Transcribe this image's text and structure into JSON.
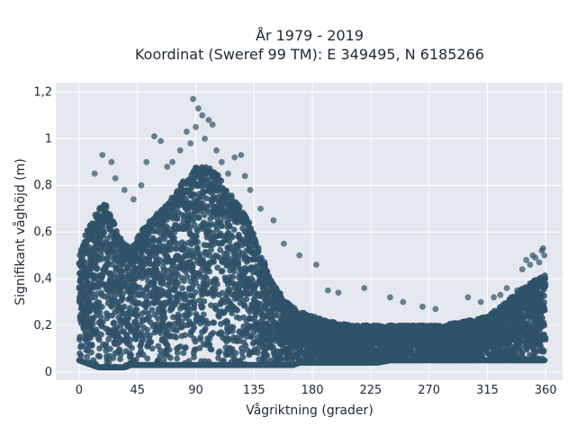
{
  "chart_data": {
    "type": "scatter",
    "title_line1": "År 1979 - 2019",
    "title_line2": "Koordinat (Sweref 99 TM): E 349495, N 6185266",
    "xlabel": "Vågriktning (grader)",
    "ylabel": "Signifikant våghöjd (m)",
    "xlim": [
      -18,
      373
    ],
    "ylim": [
      -0.035,
      1.24
    ],
    "x_ticks": [
      0,
      45,
      90,
      135,
      180,
      225,
      270,
      315,
      360
    ],
    "x_tick_labels": [
      "0",
      "45",
      "90",
      "135",
      "180",
      "225",
      "270",
      "315",
      "360"
    ],
    "y_ticks": [
      0,
      0.2,
      0.4,
      0.6,
      0.8,
      1,
      1.2
    ],
    "y_tick_labels": [
      "0",
      "0,2",
      "0,4",
      "0,6",
      "0,8",
      "1",
      "1,2"
    ],
    "grid": true,
    "marker_color": "#2f5269",
    "envelope": {
      "x": [
        0,
        5,
        10,
        15,
        20,
        25,
        30,
        35,
        40,
        45,
        50,
        55,
        60,
        65,
        70,
        75,
        80,
        85,
        90,
        95,
        100,
        105,
        110,
        115,
        120,
        125,
        130,
        135,
        140,
        145,
        150,
        155,
        160,
        165,
        170,
        175,
        180,
        190,
        200,
        210,
        220,
        230,
        240,
        250,
        260,
        270,
        280,
        290,
        300,
        310,
        320,
        330,
        335,
        340,
        345,
        350,
        355,
        360
      ],
      "y_min": [
        0.05,
        0.04,
        0.03,
        0.02,
        0.02,
        0.02,
        0.02,
        0.02,
        0.03,
        0.03,
        0.03,
        0.03,
        0.03,
        0.03,
        0.03,
        0.03,
        0.03,
        0.03,
        0.03,
        0.03,
        0.03,
        0.03,
        0.03,
        0.03,
        0.03,
        0.03,
        0.03,
        0.03,
        0.03,
        0.03,
        0.03,
        0.03,
        0.03,
        0.03,
        0.04,
        0.04,
        0.04,
        0.04,
        0.04,
        0.04,
        0.04,
        0.04,
        0.05,
        0.05,
        0.05,
        0.05,
        0.05,
        0.05,
        0.05,
        0.05,
        0.05,
        0.05,
        0.05,
        0.05,
        0.05,
        0.05,
        0.05,
        0.05
      ],
      "y_max": [
        0.5,
        0.6,
        0.65,
        0.7,
        0.72,
        0.68,
        0.6,
        0.55,
        0.55,
        0.58,
        0.62,
        0.65,
        0.68,
        0.7,
        0.74,
        0.78,
        0.82,
        0.85,
        0.88,
        0.88,
        0.88,
        0.86,
        0.82,
        0.78,
        0.74,
        0.7,
        0.66,
        0.6,
        0.52,
        0.44,
        0.38,
        0.34,
        0.3,
        0.28,
        0.26,
        0.25,
        0.24,
        0.22,
        0.21,
        0.2,
        0.2,
        0.2,
        0.2,
        0.2,
        0.2,
        0.2,
        0.2,
        0.21,
        0.22,
        0.23,
        0.26,
        0.3,
        0.33,
        0.35,
        0.37,
        0.39,
        0.4,
        0.42
      ]
    },
    "outliers": {
      "x": [
        12,
        18,
        25,
        28,
        35,
        42,
        48,
        52,
        58,
        63,
        68,
        72,
        78,
        83,
        86,
        88,
        90,
        92,
        95,
        97,
        100,
        103,
        106,
        110,
        115,
        120,
        125,
        128,
        132,
        140,
        150,
        158,
        170,
        183,
        192,
        200,
        220,
        240,
        250,
        265,
        275,
        300,
        310,
        320,
        325,
        330,
        338,
        342,
        345,
        348,
        350,
        352,
        355,
        357,
        358,
        359
      ],
      "y": [
        0.85,
        0.93,
        0.9,
        0.83,
        0.78,
        0.74,
        0.8,
        0.9,
        1.01,
        0.99,
        0.88,
        0.9,
        0.95,
        1.03,
        0.98,
        1.17,
        1.05,
        1.13,
        1.1,
        1.0,
        1.08,
        1.06,
        0.95,
        0.9,
        0.85,
        0.92,
        0.93,
        0.84,
        0.78,
        0.7,
        0.65,
        0.55,
        0.5,
        0.46,
        0.35,
        0.34,
        0.36,
        0.32,
        0.3,
        0.28,
        0.27,
        0.32,
        0.3,
        0.32,
        0.33,
        0.36,
        0.35,
        0.44,
        0.48,
        0.46,
        0.5,
        0.49,
        0.47,
        0.52,
        0.53,
        0.5
      ]
    }
  }
}
